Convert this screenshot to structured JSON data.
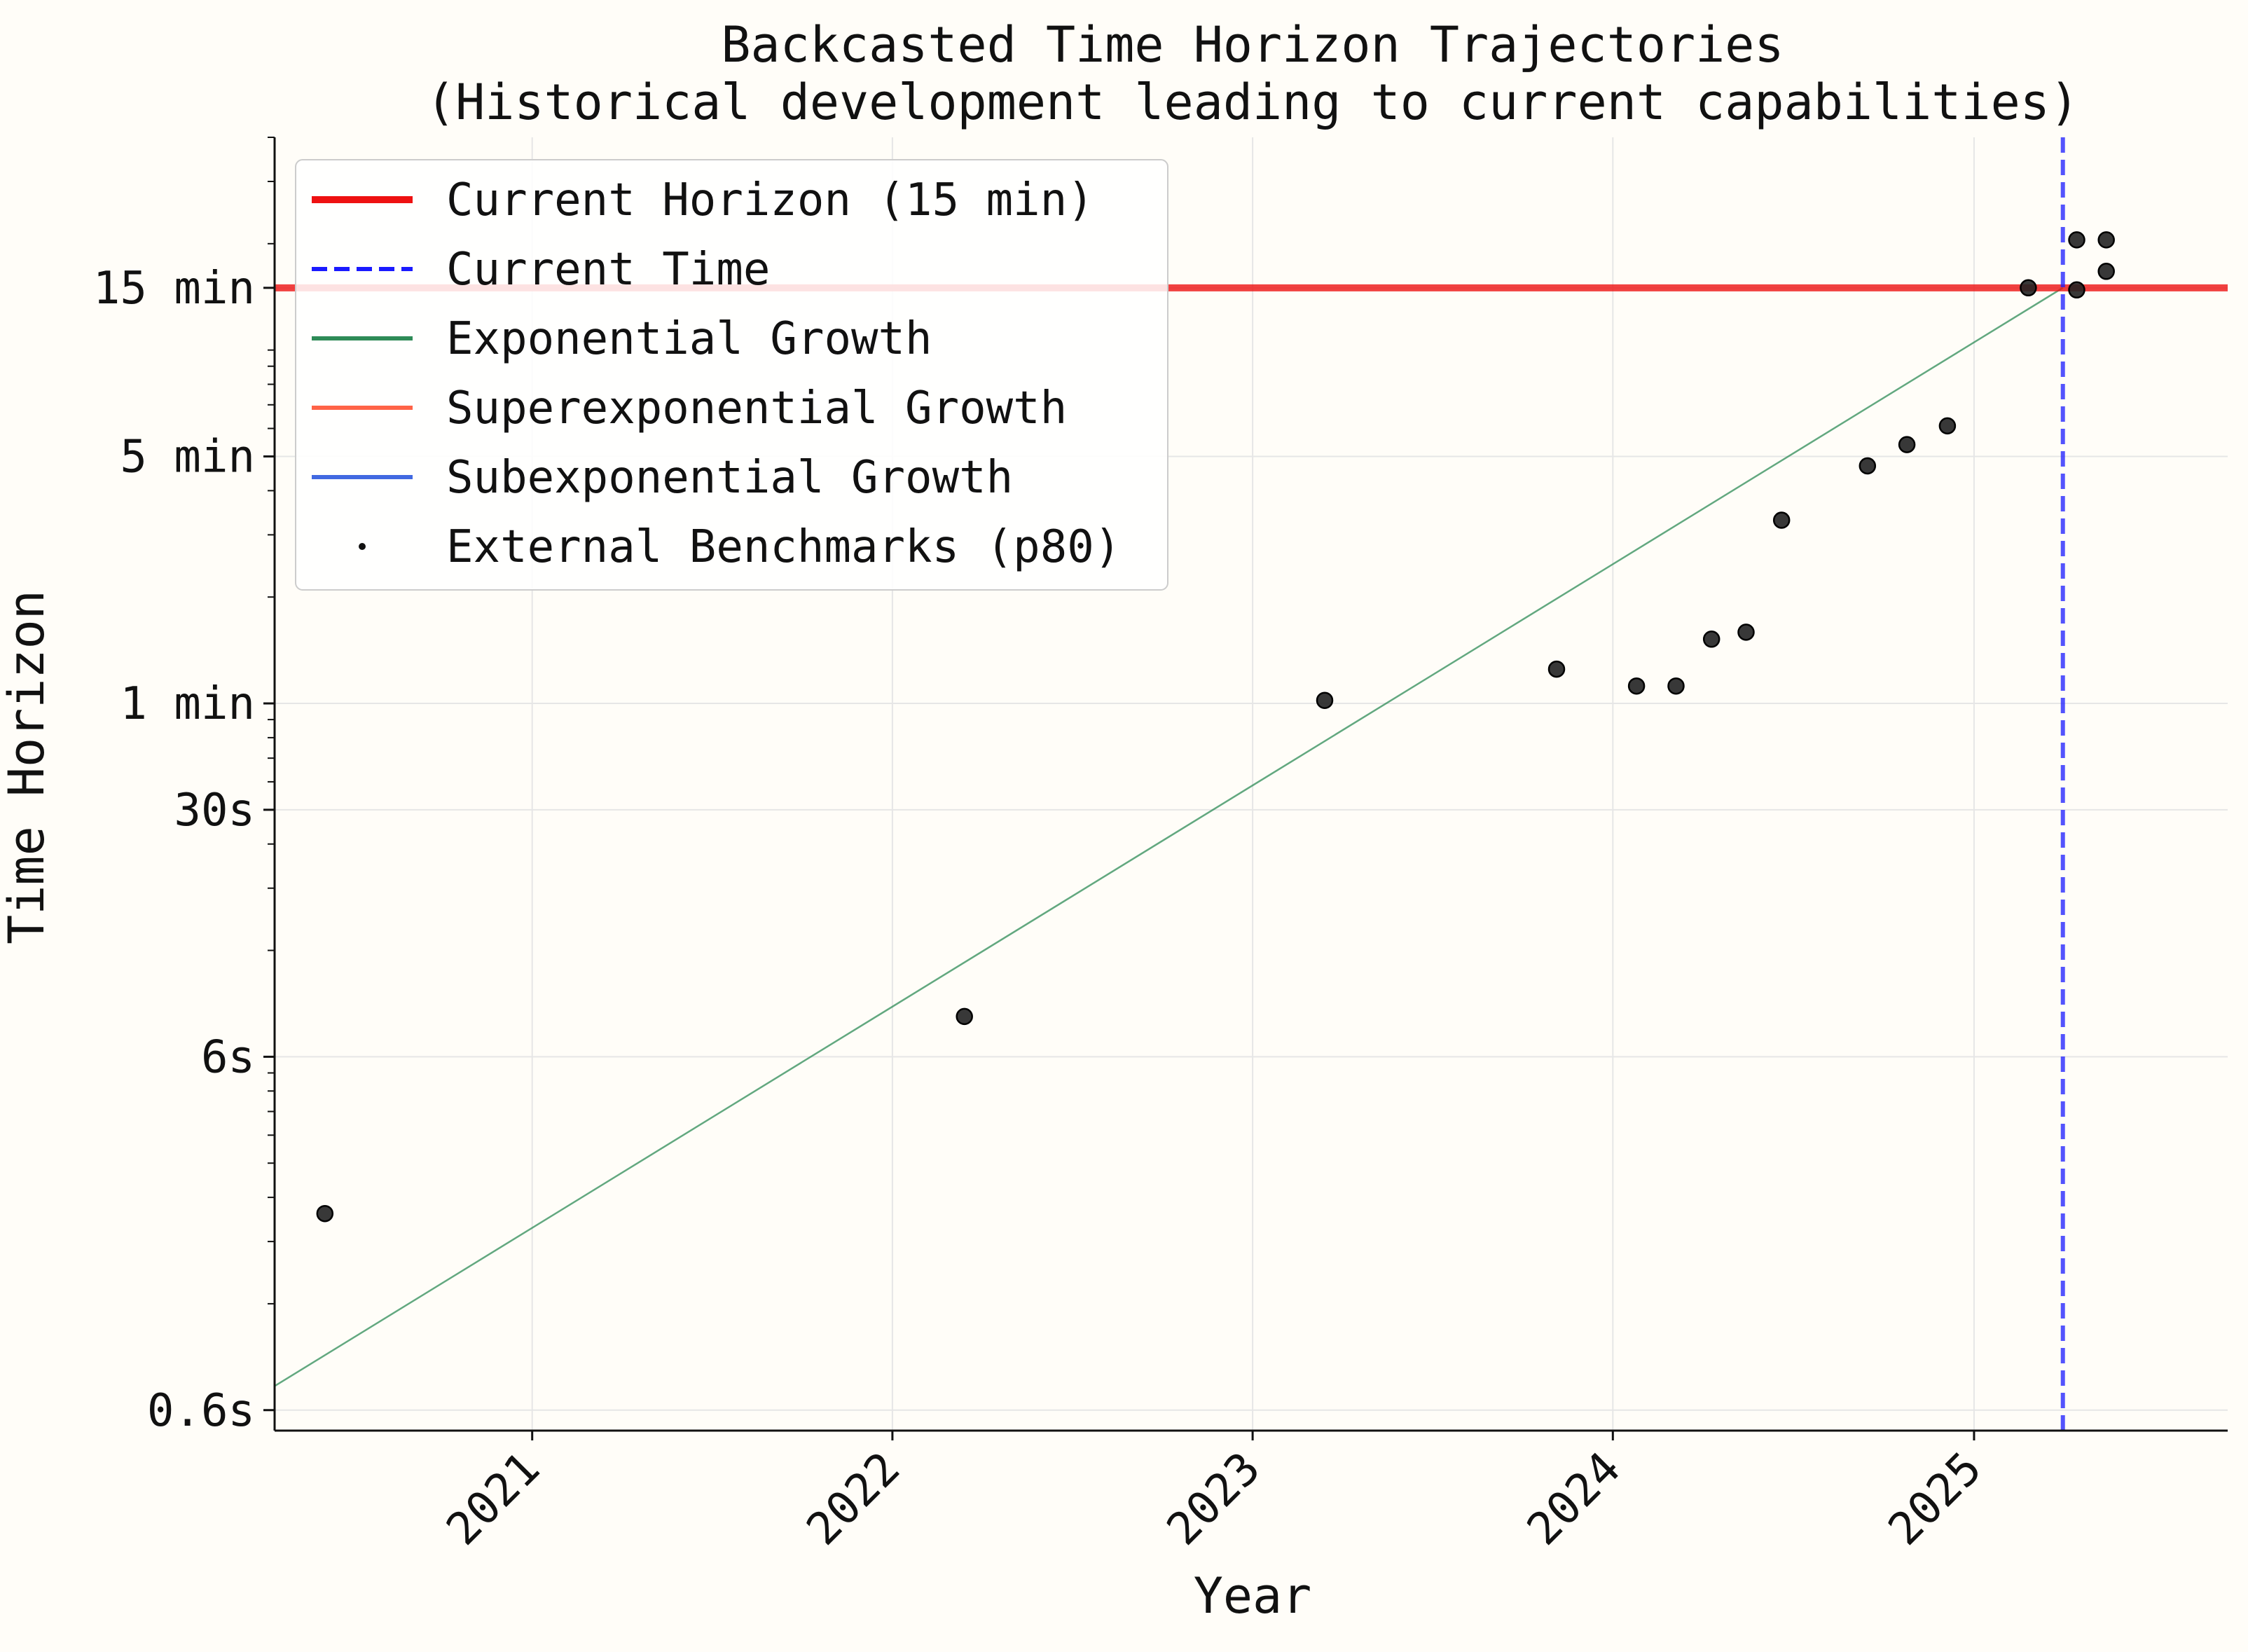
{
  "chart_data": {
    "type": "scatter",
    "title": "Backcasted Time Horizon Trajectories",
    "subtitle": "(Historical development leading to current capabilities)",
    "xlabel": "Year",
    "ylabel": "Time Horizon",
    "x_scale": "time",
    "y_scale": "log",
    "xlim": [
      "2020-04-15",
      "2025-09-15"
    ],
    "ylim_minutes": [
      0.00875,
      40
    ],
    "x_ticks": [
      "2021",
      "2022",
      "2023",
      "2024",
      "2025"
    ],
    "y_ticks": [
      {
        "value_minutes": 0.01,
        "label": "0.6s"
      },
      {
        "value_minutes": 0.1,
        "label": "6s"
      },
      {
        "value_minutes": 0.5,
        "label": "30s"
      },
      {
        "value_minutes": 1,
        "label": "1 min"
      },
      {
        "value_minutes": 5,
        "label": "5 min"
      },
      {
        "value_minutes": 15,
        "label": "15 min"
      }
    ],
    "grid": true,
    "legend_position": "top-left",
    "series": [
      {
        "name": "Current Horizon (15 min)",
        "kind": "hline",
        "y_minutes": 15,
        "color": "#ee1111",
        "style": "solid"
      },
      {
        "name": "Current Time",
        "kind": "vline",
        "x": "2025-04-01",
        "color": "#1a1aff",
        "style": "dashed"
      },
      {
        "name": "Exponential Growth",
        "kind": "line",
        "color": "#2e8b57",
        "x": [
          "2020-04-15",
          "2025-04-01"
        ],
        "y_minutes": [
          0.0117,
          15
        ]
      },
      {
        "name": "Superexponential Growth",
        "kind": "line",
        "color": "#ff6347",
        "x": [],
        "y_minutes": []
      },
      {
        "name": "Subexponential Growth",
        "kind": "line",
        "color": "#4169e1",
        "x": [],
        "y_minutes": []
      },
      {
        "name": "External Benchmarks (p80)",
        "kind": "scatter",
        "color": "#222222",
        "x": [
          "2020-06-05",
          "2022-03-15",
          "2023-03-15",
          "2023-11-05",
          "2024-01-25",
          "2024-03-05",
          "2024-04-10",
          "2024-05-15",
          "2024-06-20",
          "2024-09-15",
          "2024-10-25",
          "2024-12-05",
          "2025-02-25",
          "2025-04-15",
          "2025-04-15",
          "2025-05-15",
          "2025-05-15"
        ],
        "y_minutes": [
          0.036,
          0.13,
          1.02,
          1.25,
          1.12,
          1.12,
          1.52,
          1.59,
          3.3,
          4.7,
          5.4,
          6.1,
          15,
          14.8,
          20.5,
          20.5,
          16.7
        ]
      }
    ]
  }
}
